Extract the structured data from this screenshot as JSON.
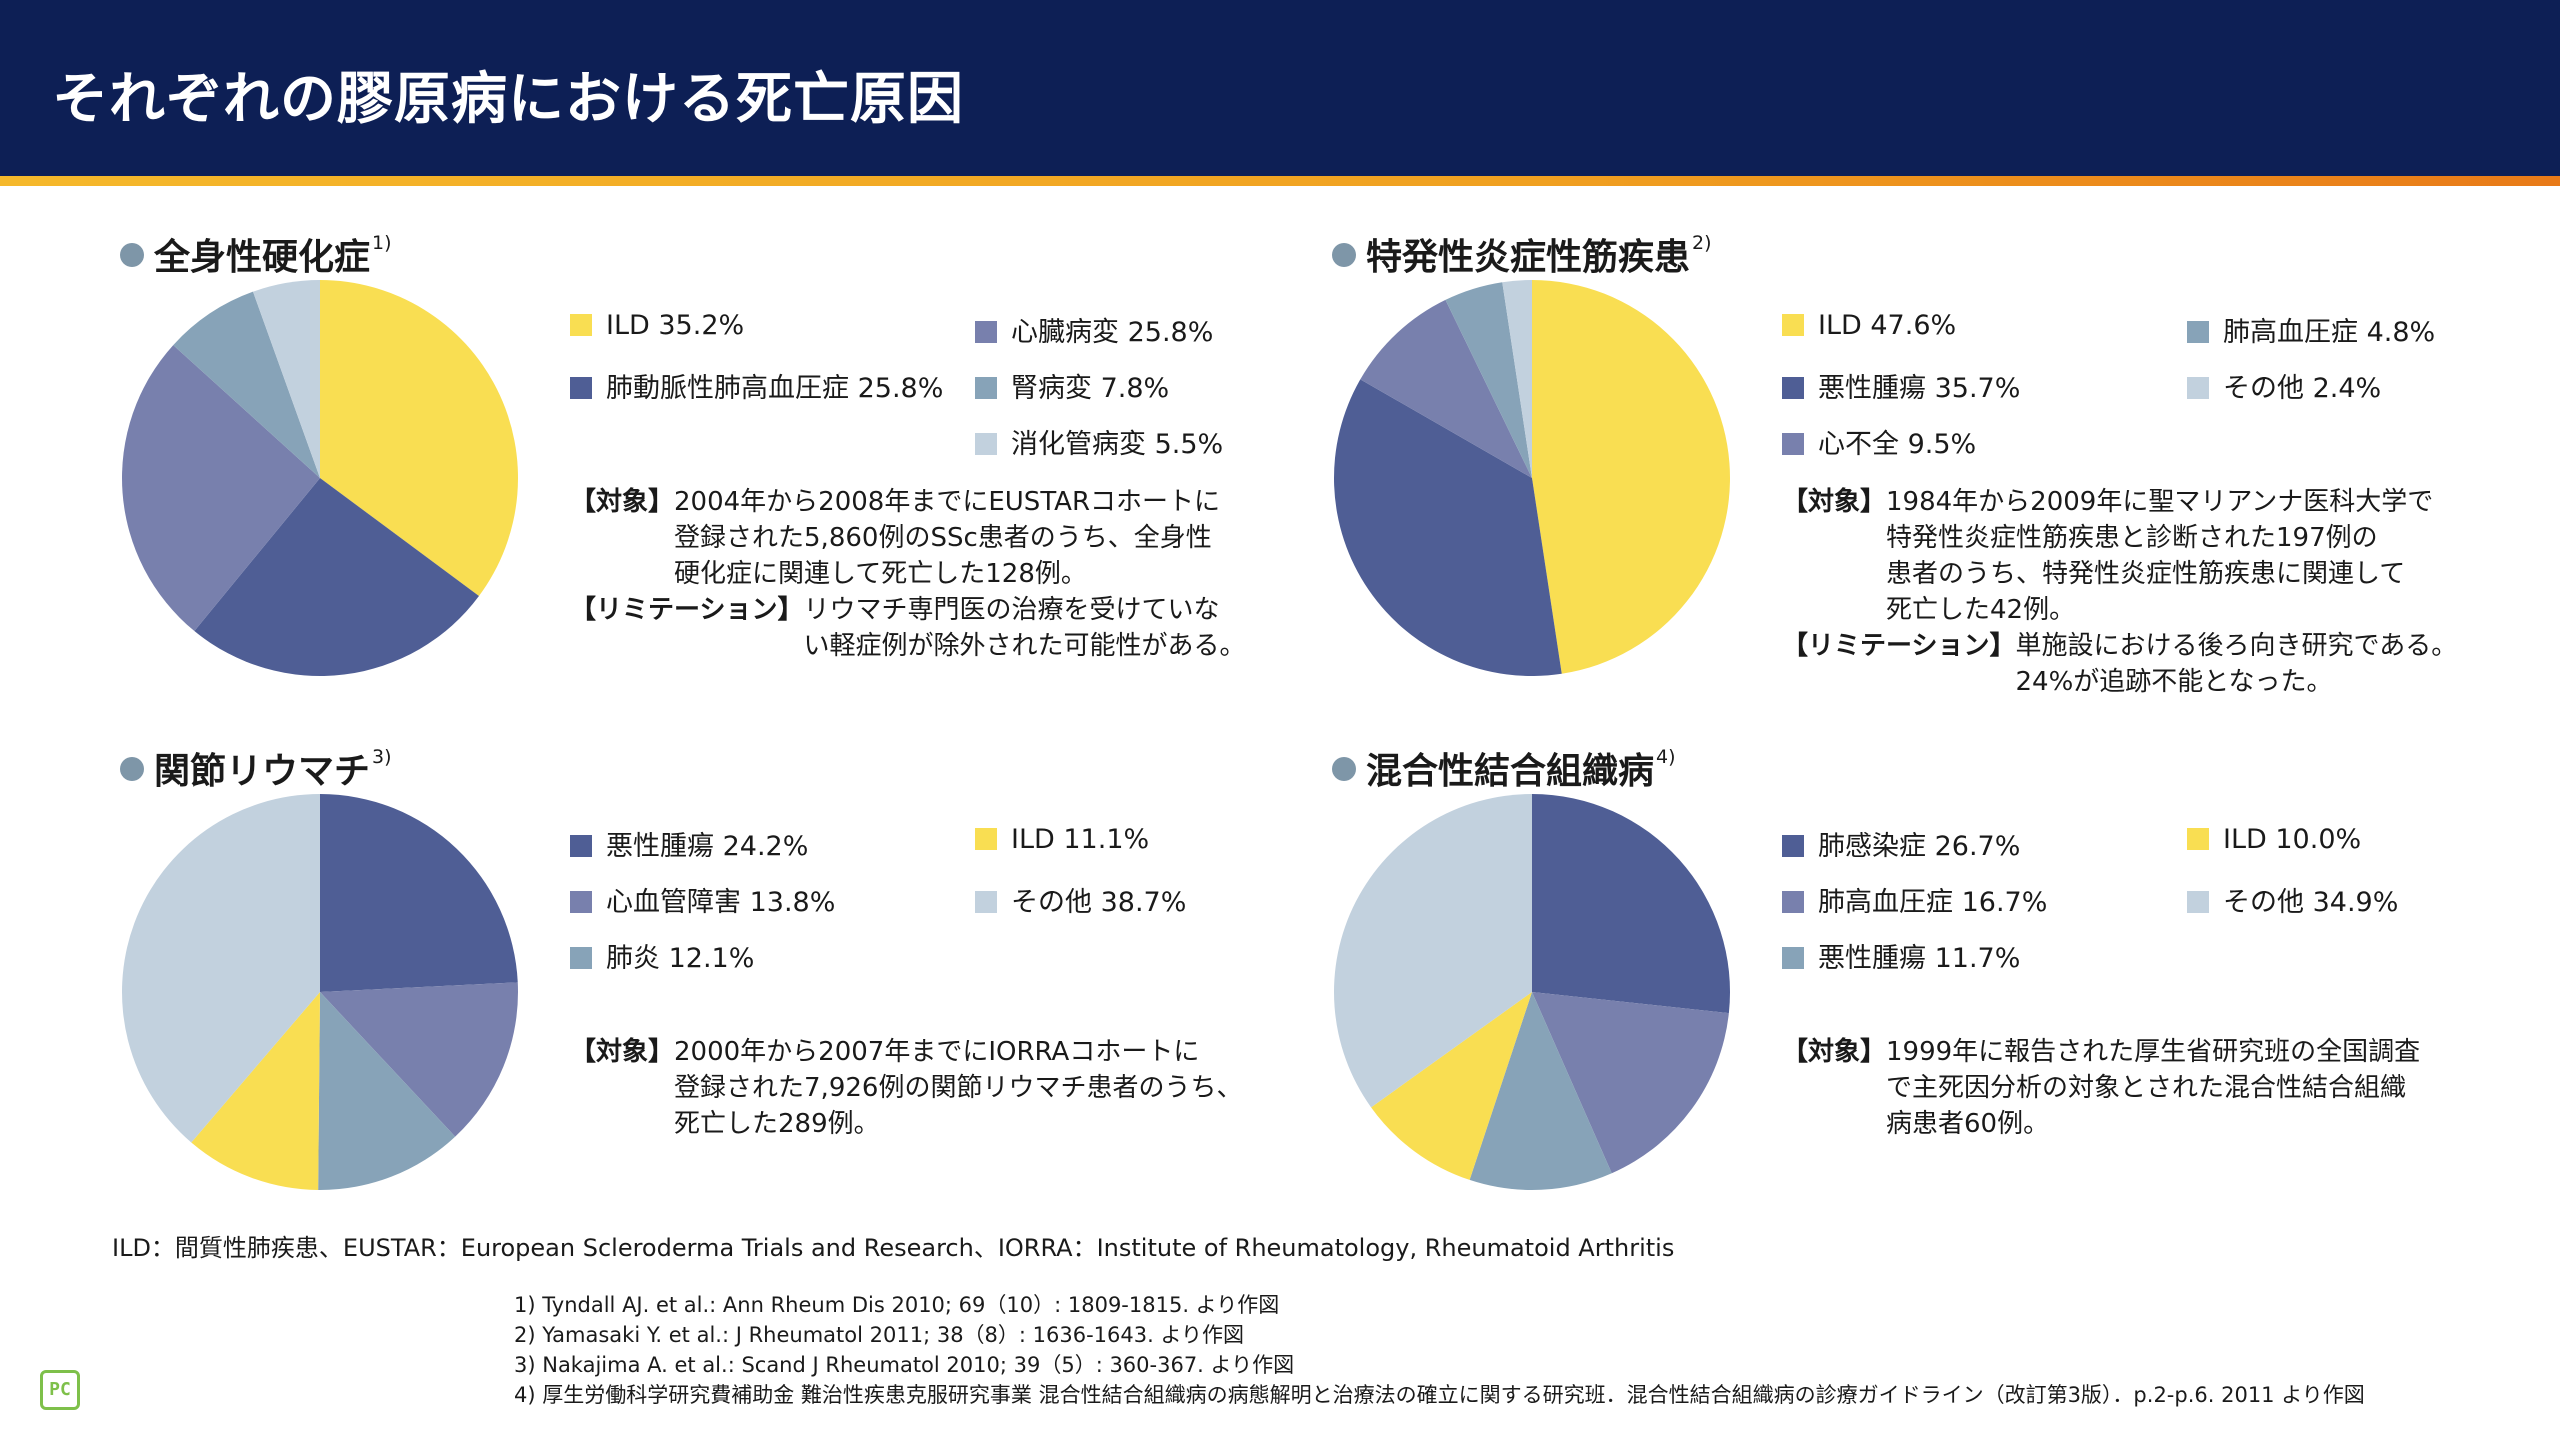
{
  "header": {
    "title": "それぞれの膠原病における死亡原因"
  },
  "panels": [
    {
      "title": "全身性硬化症",
      "ref": "1)",
      "notes": [
        {
          "label": "【対象】",
          "text": "2004年から2008年までにEUSTARコホートに\n登録された5,860例のSSc患者のうち、全身性\n硬化症に関連して死亡した128例。"
        },
        {
          "label": "【リミテーション】",
          "text": "リウマチ専門医の治療を受けていな\nい軽症例が除外された可能性がある。"
        }
      ]
    },
    {
      "title": "特発性炎症性筋疾患",
      "ref": "2)",
      "notes": [
        {
          "label": "【対象】",
          "text": "1984年から2009年に聖マリアンナ医科大学で\n特発性炎症性筋疾患と診断された197例の\n患者のうち、特発性炎症性筋疾患に関連して\n死亡した42例。"
        },
        {
          "label": "【リミテーション】",
          "text": "単施設における後ろ向き研究である。\n24%が追跡不能となった。"
        }
      ]
    },
    {
      "title": "関節リウマチ",
      "ref": "3)",
      "notes": [
        {
          "label": "【対象】",
          "text": "2000年から2007年までにIORRAコホートに\n登録された7,926例の関節リウマチ患者のうち、\n死亡した289例。"
        }
      ]
    },
    {
      "title": "混合性結合組織病",
      "ref": "4)",
      "notes": [
        {
          "label": "【対象】",
          "text": "1999年に報告された厚生省研究班の全国調査\nで主死因分析の対象とされた混合性結合組織\n病患者60例。"
        }
      ]
    }
  ],
  "chart_data": [
    {
      "type": "pie",
      "title": "全身性硬化症",
      "slices": [
        {
          "label": "ILD",
          "value": 35.2,
          "display": "ILD 35.2%",
          "color": "#f9de52"
        },
        {
          "label": "肺動脈性肺高血圧症",
          "value": 25.8,
          "display": "肺動脈性肺高血圧症 25.8%",
          "color": "#4f5e95"
        },
        {
          "label": "心臓病変",
          "value": 25.8,
          "display": "心臓病変 25.8%",
          "color": "#7880ad"
        },
        {
          "label": "腎病変",
          "value": 7.8,
          "display": "腎病変 7.8%",
          "color": "#87a3b8"
        },
        {
          "label": "消化管病変",
          "value": 5.5,
          "display": "消化管病変 5.5%",
          "color": "#c2d1de"
        }
      ]
    },
    {
      "type": "pie",
      "title": "特発性炎症性筋疾患",
      "slices": [
        {
          "label": "ILD",
          "value": 47.6,
          "display": "ILD 47.6%",
          "color": "#f9de52"
        },
        {
          "label": "悪性腫瘍",
          "value": 35.7,
          "display": "悪性腫瘍 35.7%",
          "color": "#4f5e95"
        },
        {
          "label": "心不全",
          "value": 9.5,
          "display": "心不全 9.5%",
          "color": "#7880ad"
        },
        {
          "label": "肺高血圧症",
          "value": 4.8,
          "display": "肺高血圧症 4.8%",
          "color": "#87a3b8"
        },
        {
          "label": "その他",
          "value": 2.4,
          "display": "その他 2.4%",
          "color": "#c2d1de"
        }
      ]
    },
    {
      "type": "pie",
      "title": "関節リウマチ",
      "slices": [
        {
          "label": "悪性腫瘍",
          "value": 24.2,
          "display": "悪性腫瘍 24.2%",
          "color": "#4f5e95"
        },
        {
          "label": "心血管障害",
          "value": 13.8,
          "display": "心血管障害 13.8%",
          "color": "#7880ad"
        },
        {
          "label": "肺炎",
          "value": 12.1,
          "display": "肺炎 12.1%",
          "color": "#87a3b8"
        },
        {
          "label": "ILD",
          "value": 11.1,
          "display": "ILD 11.1%",
          "color": "#f9de52"
        },
        {
          "label": "その他",
          "value": 38.7,
          "display": "その他 38.7%",
          "color": "#c2d1de"
        }
      ]
    },
    {
      "type": "pie",
      "title": "混合性結合組織病",
      "slices": [
        {
          "label": "肺感染症",
          "value": 26.7,
          "display": "肺感染症 26.7%",
          "color": "#4f5e95"
        },
        {
          "label": "肺高血圧症",
          "value": 16.7,
          "display": "肺高血圧症 16.7%",
          "color": "#7880ad"
        },
        {
          "label": "悪性腫瘍",
          "value": 11.7,
          "display": "悪性腫瘍 11.7%",
          "color": "#87a3b8"
        },
        {
          "label": "ILD",
          "value": 10.0,
          "display": "ILD 10.0%",
          "color": "#f9de52"
        },
        {
          "label": "その他",
          "value": 34.9,
          "display": "その他 34.9%",
          "color": "#c2d1de"
        }
      ]
    }
  ],
  "footer": {
    "abbreviations": "ILD：間質性肺疾患、EUSTAR：European Scleroderma Trials and Research、IORRA：Institute of Rheumatology, Rheumatoid Arthritis",
    "references": [
      "1) Tyndall AJ. et al.: Ann Rheum Dis 2010; 69（10）: 1809-1815. より作図",
      "2) Yamasaki Y. et al.: J Rheumatol 2011; 38（8）: 1636-1643. より作図",
      "3) Nakajima A. et al.: Scand J Rheumatol 2010; 39（5）: 360-367. より作図",
      "4) 厚生労働科学研究費補助金 難治性疾患克服研究事業 混合性結合組織病の病態解明と治療法の確立に関する研究班．混合性結合組織病の診療ガイドライン（改訂第3版）．p.2-p.6. 2011 より作図"
    ],
    "logo_text": "PC"
  }
}
